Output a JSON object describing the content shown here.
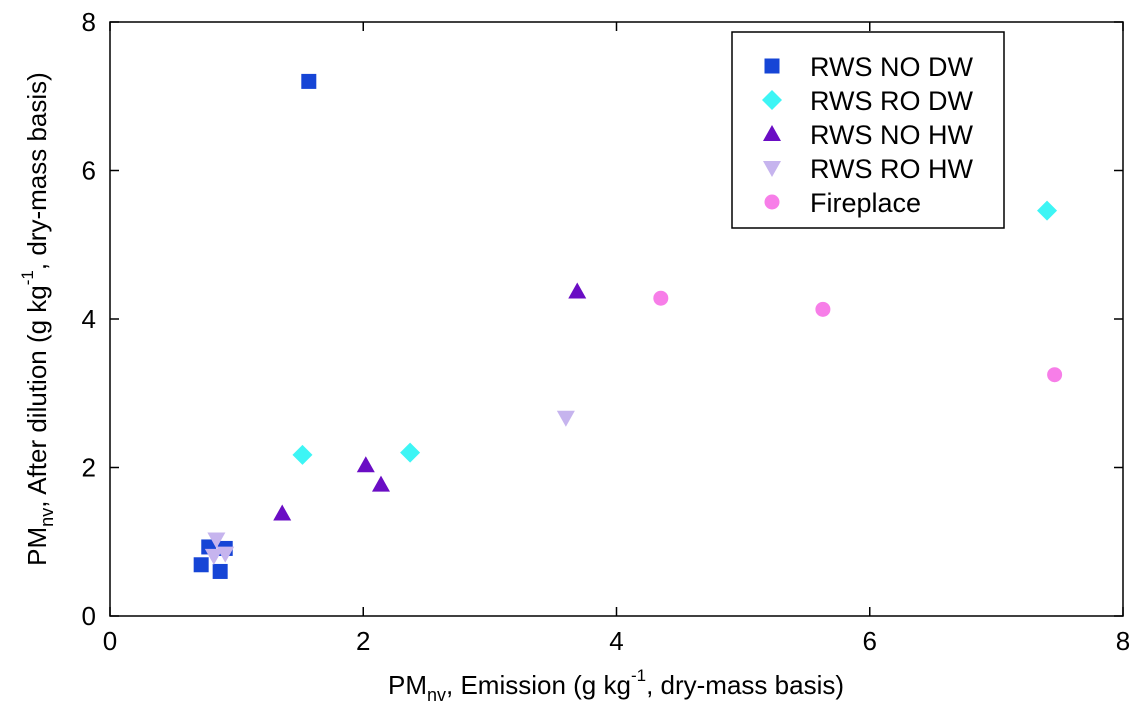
{
  "chart_data": {
    "type": "scatter",
    "x_axis": {
      "label_prefix": "PM",
      "label_subscript": "nv",
      "label_main": ", Emission (g kg",
      "label_superscript": "-1",
      "label_suffix": ", dry-mass basis)",
      "range": [
        0,
        8
      ],
      "ticks": [
        0,
        2,
        4,
        6,
        8
      ],
      "tick_labels": [
        "0",
        "2",
        "4",
        "6",
        "8"
      ]
    },
    "y_axis": {
      "label_prefix": "PM",
      "label_subscript": "nv",
      "label_main": ", After dilution (g kg",
      "label_superscript": "-1",
      "label_suffix": ", dry-mass basis)",
      "range": [
        0,
        8
      ],
      "ticks": [
        0,
        2,
        4,
        6,
        8
      ],
      "tick_labels": [
        "0",
        "2",
        "4",
        "6",
        "8"
      ]
    },
    "grid": false,
    "legend_position": "top-right",
    "series": [
      {
        "name": "RWS NO DW",
        "marker": "square",
        "color": "#1645D6",
        "points": [
          [
            1.57,
            7.2
          ],
          [
            0.78,
            0.93
          ],
          [
            0.91,
            0.91
          ],
          [
            0.72,
            0.69
          ],
          [
            0.87,
            0.6
          ]
        ]
      },
      {
        "name": "RWS RO DW",
        "marker": "diamond",
        "color": "#3DF5F5",
        "points": [
          [
            7.4,
            5.46
          ],
          [
            1.52,
            2.17
          ],
          [
            2.37,
            2.2
          ]
        ]
      },
      {
        "name": "RWS NO HW",
        "marker": "triangle-up",
        "color": "#6A0DC4",
        "points": [
          [
            3.69,
            4.37
          ],
          [
            2.02,
            2.03
          ],
          [
            2.14,
            1.77
          ],
          [
            1.36,
            1.38
          ]
        ]
      },
      {
        "name": "RWS RO HW",
        "marker": "triangle-down",
        "color": "#C6B4EE",
        "points": [
          [
            3.6,
            2.67
          ],
          [
            0.84,
            1.03
          ],
          [
            0.91,
            0.84
          ],
          [
            0.82,
            0.81
          ]
        ]
      },
      {
        "name": "Fireplace",
        "marker": "circle",
        "color": "#F77EE8",
        "points": [
          [
            4.35,
            4.28
          ],
          [
            5.63,
            4.13
          ],
          [
            7.46,
            3.25
          ]
        ]
      }
    ]
  }
}
